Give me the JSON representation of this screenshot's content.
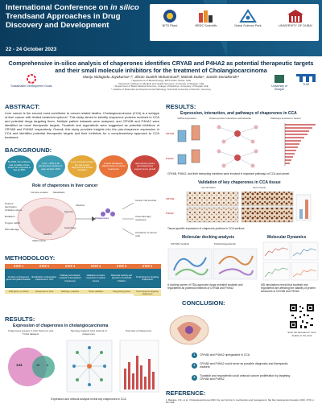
{
  "header": {
    "conference_title_line1": "International Conference on ",
    "conference_title_italic": "in silico",
    "conference_title_line2": "Trendsand Approaches in Drug Discovery and Development",
    "date": "22 - 24 October 2023",
    "logos": [
      {
        "name": "BITS Pilani",
        "caption": "BITS Pilani"
      },
      {
        "name": "BRDC",
        "caption": "BRDC Scientific"
      },
      {
        "name": "Dubai Science Park",
        "caption": "Dubai Science Park"
      },
      {
        "name": "University of Dubai",
        "caption": "UNIVERSITY OF DUBAI"
      }
    ]
  },
  "paper": {
    "title": "Comprehensive in-silico analysis of chaperones identifies CRYAB and P4HA2 as potential therapeutic targets and their small molecule inhibitors for the treatment of Cholangiocarcinoma",
    "authors": "Manju Nidagodu Jayakumar¹,², Jibran Sualeh Muhammad³, Malvak Dutta⁴, Sanitin Donakonde⁴",
    "affiliations": [
      "¹ Department of Biotechnology, BITS Pilani, Dubai, UAE",
      "² Research Institute for Medical and Health Sciences, University of Sharjah, UAE",
      "³ Department of Basic Medical Sciences, College of Medicine, University of Sharjah UAE",
      "⁴ Institute of Molecular and Experimental Pathology, Technical University of Munich, Germany"
    ],
    "left_logo": "Sustainable Development Goals",
    "right_logo_1": "University of Sharjah",
    "right_logo_2": "TUM"
  },
  "abstract": {
    "heading": "ABSTRACT:",
    "text": "Liver cancer is the second most contributor to cancer-related deaths. Cholangiocarcinoma (CCA) is a subtype of liver cancer with limited treatment options¹. This study aimed to identify chaperone proteins involved in CCA and potential drugs targeting them. Multiple patient datasets were analyzed, and CRYAB and P4HA2 were identified as novel therapeutic targets. Tucatinib and regorafenib were suggested as potential inhibitors of CRYAB and P4HA2 respectively. Overall, this study provides insights into the pan-chaperone expression in CCA and identifies potential therapeutic targets and their inhibitors for a complementary approach to CCA treatment."
  },
  "background": {
    "heading": "BACKGROUND:",
    "ellipses": [
      "By 2040, the incidence and mortality of liver cancer are expected to rise by 55%",
      "CCA: ~15% of all primary liver cancers; 5-year survival <20%",
      "5-year survival remains low due to late diagnosis and limited therapies",
      "Limited therapeutic effectiveness of current treatments",
      "Heat shock proteins and chaperones support tumor growth"
    ],
    "diagram_title": "Role of chaperones in liver cancer",
    "left_labels": [
      "Nutrient deprivation",
      "Oxidative stress",
      "Radiation",
      "Oxygen deficit",
      "DNA damage"
    ],
    "center_label": "Chaperones",
    "right_labels": [
      "Cancer cell survival",
      "Chemotherapy resistance",
      "Avoidance of cancer cells"
    ],
    "top_labels": [
      "Immune evasion",
      "Metastasis"
    ],
    "middle_labels": [
      "Hypoxia",
      "Autophagy",
      "CHAPS",
      "Infection",
      "Inflammation"
    ]
  },
  "methodology": {
    "heading": "METHODOLOGY:",
    "steps": [
      {
        "title": "STEP 1",
        "body": "Curation of chaperome genes and patient datasets",
        "foot": "1035 genes, 2 cohorts"
      },
      {
        "title": "STEP 2",
        "body": "Identification of deregulated chaperones in CCA",
        "foot": "Chaperones in CCA"
      },
      {
        "title": "STEP 3",
        "body": "Pathway and network analysis of deregulated chaperones",
        "foot": "Pathways, networks"
      },
      {
        "title": "STEP 4",
        "body": "Validation of protein expression in patient tissues",
        "foot": "Tissue validation"
      },
      {
        "title": "STEP 5",
        "body": "Molecular docking and dynamics of potential inhibitors",
        "foot": "Drug-binding poses"
      },
      {
        "title": "STEP 6",
        "body": "Small drugs for targeting chaperones",
        "foot": "Novel drugs for targeting chaperones"
      }
    ]
  },
  "results_left": {
    "heading": "RESULTS:",
    "sub": "Expression of chaperones in  cholangiocarcinoma",
    "venn_title": "Chaperones present in both fresh-onc and TCGA datasets",
    "venn_values": [
      "144",
      "10",
      "2"
    ],
    "network_title": "Topology analysis CCA network of chaperones",
    "bars_title": "Overview of chaperones",
    "caption": "Expression and network analysis reveal key chaperones in CCA"
  },
  "results_right": {
    "heading": "RESULTS:",
    "sub1": "Expression, interaction, and pathways of chaperones in CCA",
    "panel_titles": [
      "mRNA expression",
      "Protein-protein interaction subnetworks",
      "Pathways involved in cancer"
    ],
    "row_labels": [
      "CRYAB",
      "P4HA2"
    ],
    "caption1": "CRYAB, P4HA2, and their interacting members were involved in important pathways of CCA and cancer",
    "sub2": "Validation of key chaperones in CCA tissue",
    "tissue_labels": [
      "normal tissue",
      "tumor tissue"
    ],
    "caption2": "Tissue-specific expression of chaperone proteins in CCA sections",
    "sub3": "Molecular docking analysis",
    "docking_labels": [
      "CRYAB-Tucatinib",
      "P4HA2-Regorafenib"
    ],
    "caption3": "A docking screen of FDA-approved drugs revealed tucatinib and regorafenib as potential inhibitors of CRYAB and P4HA2",
    "sub4": "Molecular Dynamics",
    "caption4": "MD simulations reveal that tucatinib and regorafenib are affecting the stability of protein structures of CRYAB and P4HA2"
  },
  "conclusion": {
    "heading": "CONCLUSION:",
    "qr_caption": "Scan the barcode for more details on the work",
    "items": [
      "CRYAB and P4HA2 upregulated in CCA",
      "CRYAB and P4HA2 could serve as possible diagnostic and therapeutic markers",
      "Tucatinib and regorafenib could obstruct cancer proliferation by targeting CRYAB and P4HA2"
    ]
  },
  "reference": {
    "heading": "REFERENCE:",
    "text": "1. Banales, J.M., et al., Cholangiocarcinoma 2020: the next horizon in mechanisms and management. Nat Rev Gastroenterol Hepatol, 2020. 17(9): p. 557-588."
  },
  "colors": {
    "header_bg": "#0b3c5d",
    "accent": "#1e6f8e",
    "orange": "#e8743b",
    "heading": "#0e3b5e"
  }
}
